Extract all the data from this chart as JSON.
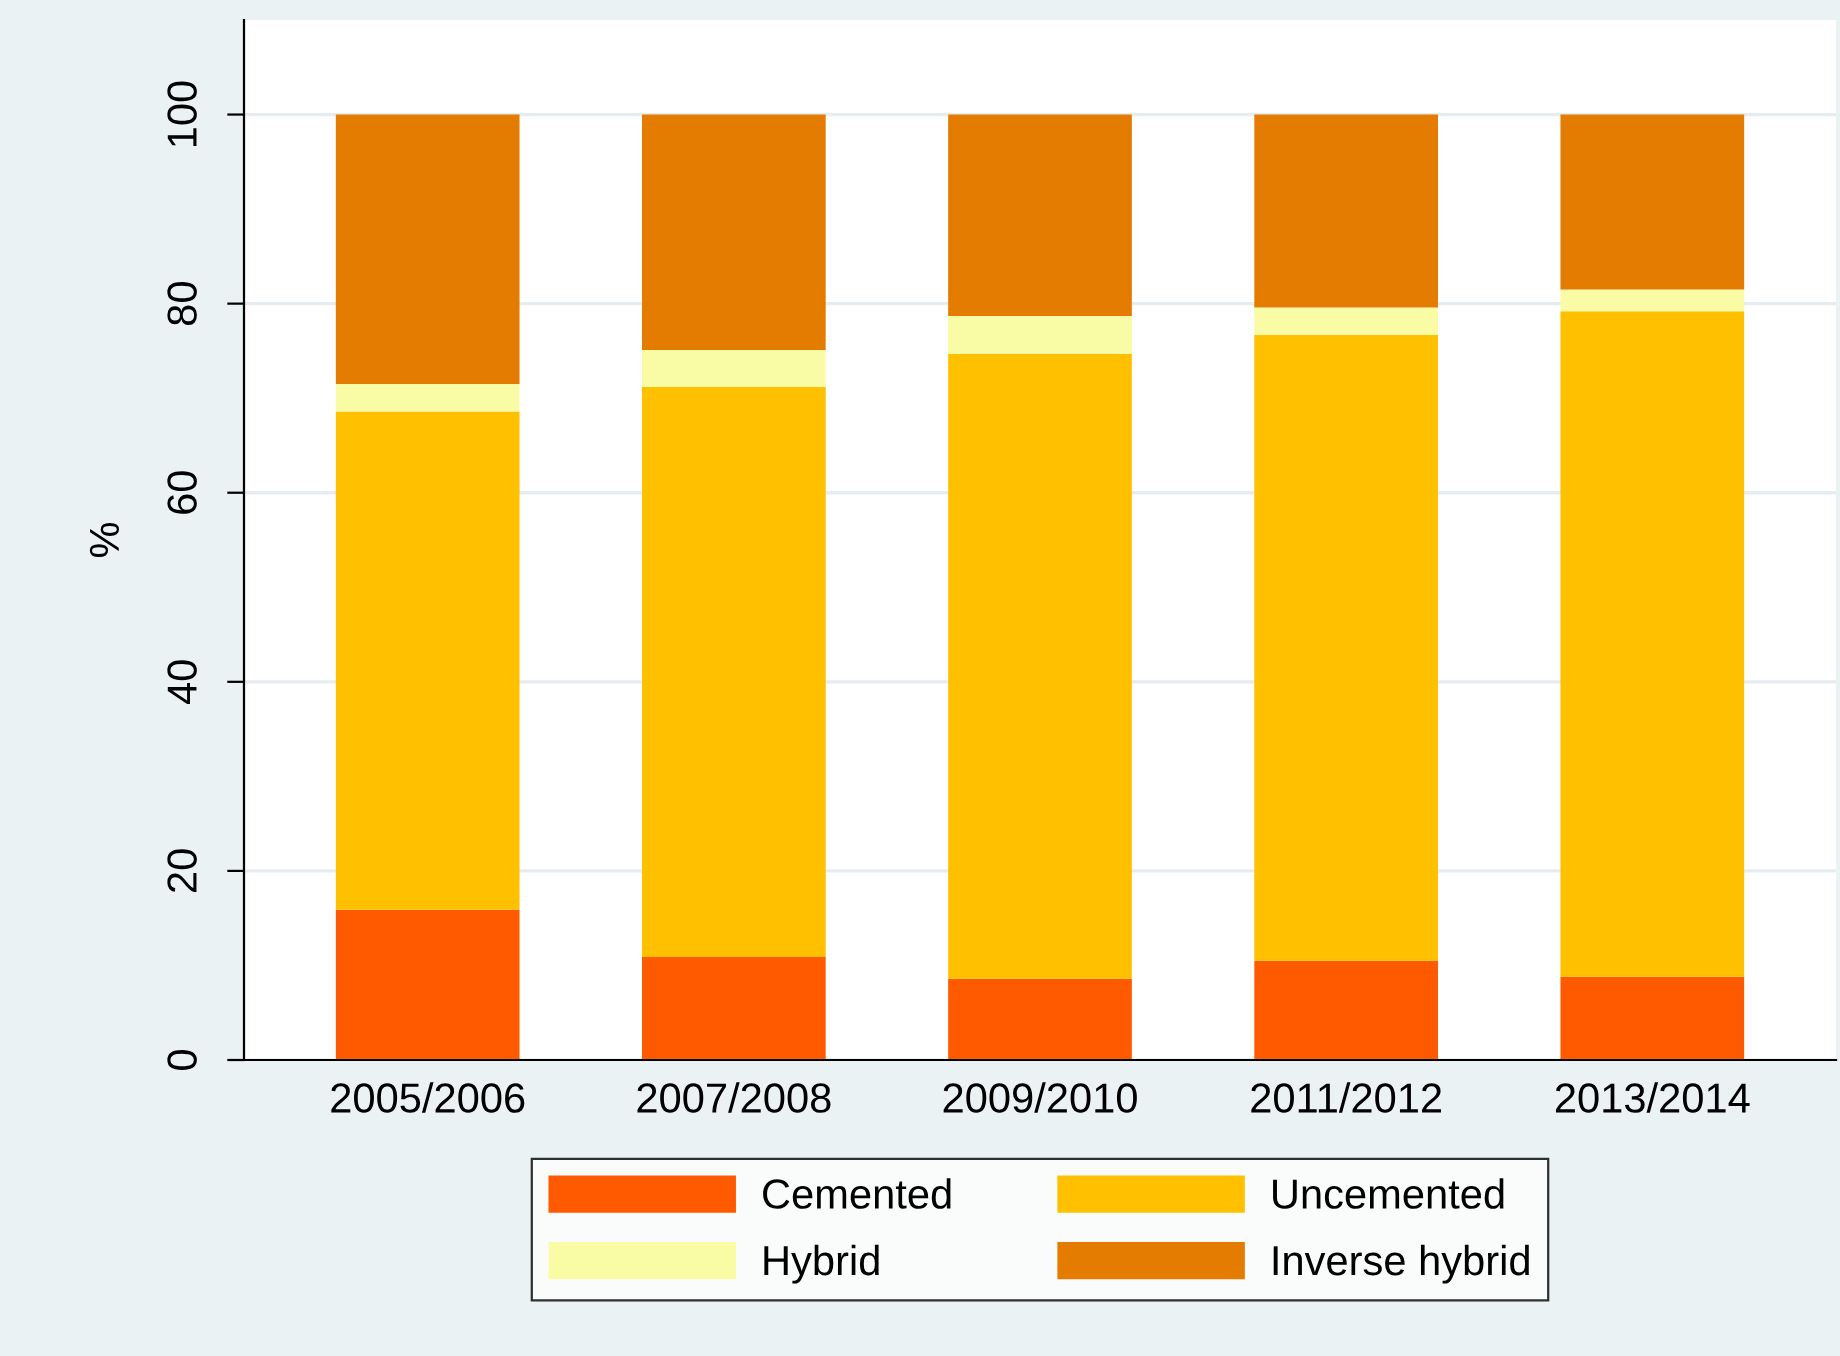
{
  "chart_data": {
    "type": "bar",
    "stacked": true,
    "ylabel": "%",
    "categories": [
      "2005/2006",
      "2007/2008",
      "2009/2010",
      "2011/2012",
      "2013/2014"
    ],
    "series": [
      {
        "name": "Cemented",
        "color": "#ff5a00",
        "values": [
          15.9,
          10.9,
          8.6,
          10.5,
          8.8
        ]
      },
      {
        "name": "Uncemented",
        "color": "#ffc000",
        "values": [
          52.7,
          60.3,
          66.1,
          66.2,
          70.4
        ]
      },
      {
        "name": "Hybrid",
        "color": "#f9fba5",
        "values": [
          2.9,
          3.9,
          4.0,
          2.9,
          2.3
        ]
      },
      {
        "name": "Inverse hybrid",
        "color": "#e37c00",
        "values": [
          28.5,
          24.9,
          21.3,
          20.4,
          18.5
        ]
      }
    ],
    "ylim": [
      0,
      110
    ],
    "yticks": [
      0,
      20,
      40,
      60,
      80,
      100
    ],
    "grid": "y",
    "legend": "bottom"
  }
}
